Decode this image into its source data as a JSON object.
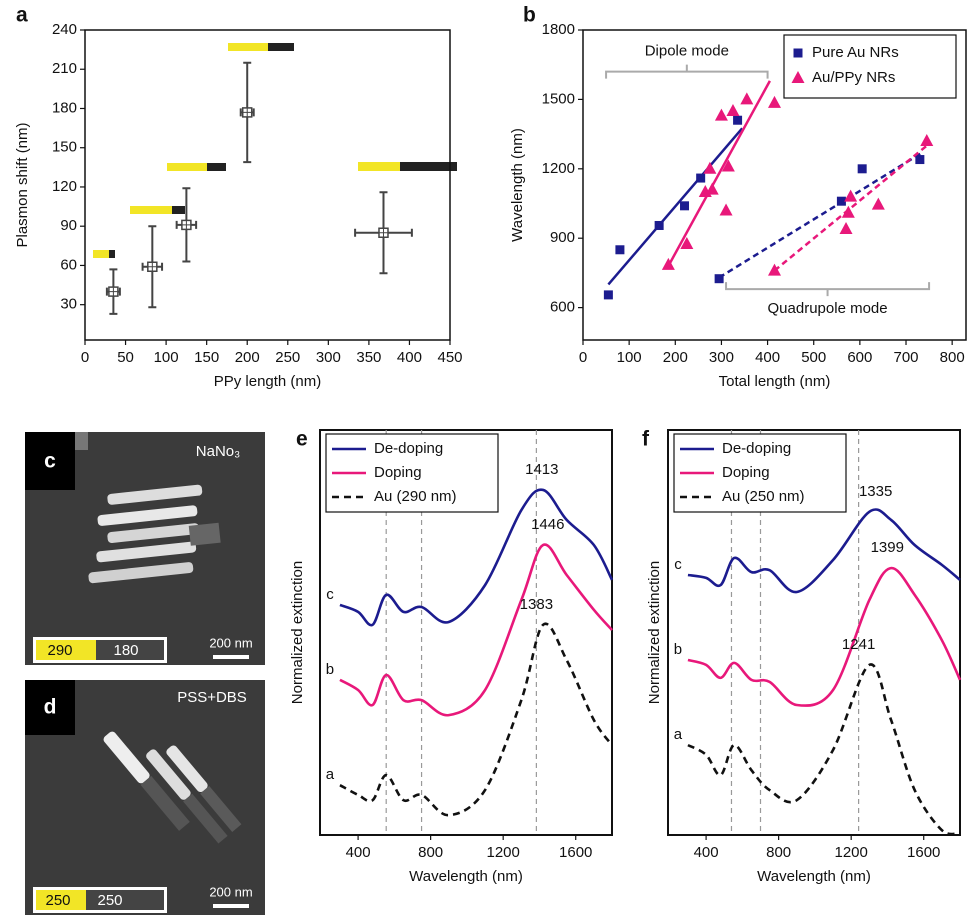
{
  "chart_data": [
    {
      "type": "errorbar",
      "panel": "a",
      "xlabel": "PPy length (nm)",
      "ylabel": "Plasmon shift (nm)",
      "xlim": [
        0,
        450
      ],
      "xticks": [
        0,
        50,
        100,
        150,
        200,
        250,
        300,
        350,
        400,
        450
      ],
      "ylim": [
        3,
        240
      ],
      "yticks": [
        30,
        60,
        90,
        120,
        150,
        180,
        210,
        240
      ],
      "color": "#444444",
      "x": [
        35,
        83,
        125,
        200,
        368
      ],
      "values": [
        40,
        59,
        91,
        177,
        85
      ],
      "xerr": [
        8,
        12,
        12,
        8,
        35
      ],
      "yerr": [
        17,
        31,
        28,
        38,
        31
      ]
    },
    {
      "type": "scatter",
      "panel": "b",
      "xlabel": "Total length (nm)",
      "ylabel": "Wavelength (nm)",
      "xlim": [
        0,
        830
      ],
      "xticks": [
        0,
        100,
        200,
        300,
        400,
        500,
        600,
        700,
        800
      ],
      "ylim": [
        460,
        1800
      ],
      "yticks": [
        600,
        900,
        1200,
        1500,
        1800
      ],
      "legend": "upper right",
      "series": [
        {
          "name": "Pure Au NRs",
          "color": "#1c1c8f",
          "marker": "square",
          "x": [
            55,
            80,
            165,
            220,
            255,
            335,
            295,
            560,
            605,
            730
          ],
          "values": [
            655,
            850,
            955,
            1040,
            1160,
            1410,
            725,
            1060,
            1200,
            1240
          ],
          "fits": [
            {
              "x": [
                55,
                345
              ],
              "y": [
                700,
                1375
              ],
              "dashed": false
            },
            {
              "x": [
                295,
                735
              ],
              "y": [
                730,
                1270
              ],
              "dashed": true
            }
          ]
        },
        {
          "name": "Au/PPy NRs",
          "color": "#e8187a",
          "marker": "triangle",
          "x": [
            185,
            225,
            265,
            275,
            280,
            300,
            310,
            315,
            325,
            355,
            415,
            415,
            570,
            575,
            580,
            640,
            745
          ],
          "values": [
            785,
            875,
            1100,
            1200,
            1110,
            1430,
            1020,
            1210,
            1450,
            1500,
            1485,
            760,
            940,
            1010,
            1080,
            1045,
            1320
          ],
          "fits": [
            {
              "x": [
                185,
                405
              ],
              "y": [
                780,
                1580
              ],
              "dashed": false
            },
            {
              "x": [
                415,
                745
              ],
              "y": [
                760,
                1300
              ],
              "dashed": true
            }
          ]
        }
      ],
      "annotations": [
        {
          "text": "Dipole mode",
          "x": [
            50,
            400
          ],
          "y": 1620,
          "side": "above"
        },
        {
          "text": "Quadrupole mode",
          "x": [
            310,
            750
          ],
          "y": 680,
          "side": "below"
        }
      ]
    },
    {
      "type": "line",
      "panel": "e",
      "xlabel": "Wavelength (nm)",
      "ylabel": "Normalized extinction",
      "xlim": [
        190,
        1800
      ],
      "xticks": [
        400,
        800,
        1200,
        1600
      ],
      "ylim": [
        0,
        100
      ],
      "vlines": [
        555,
        750,
        1383
      ],
      "x": [
        300,
        400,
        480,
        555,
        650,
        750,
        900,
        1100,
        1300,
        1420,
        1550,
        1700,
        1800
      ],
      "series": [
        {
          "name": "De-doping",
          "color": "#1c1c8f",
          "dashed": false,
          "tag": "c",
          "peak": 1413,
          "values": [
            56.8,
            55.1,
            51.9,
            59.3,
            55.1,
            56.3,
            52.6,
            61.7,
            80.2,
            85.2,
            77.8,
            71.6,
            63.0
          ]
        },
        {
          "name": "Doping",
          "color": "#e8187a",
          "dashed": false,
          "tag": "b",
          "peak": 1446,
          "values": [
            38.3,
            35.8,
            32.1,
            39.5,
            33.3,
            33.3,
            29.6,
            35.8,
            58.0,
            71.6,
            64.2,
            55.6,
            50.6
          ]
        },
        {
          "name": "Au (290 nm)",
          "color": "#111111",
          "dashed": true,
          "tag": "a",
          "peak": 1383,
          "values": [
            12.3,
            9.9,
            8.6,
            14.8,
            8.6,
            9.9,
            4.9,
            11.1,
            33.3,
            51.9,
            43.2,
            28.4,
            22.2
          ]
        }
      ]
    },
    {
      "type": "line",
      "panel": "f",
      "xlabel": "Wavelength (nm)",
      "ylabel": "Normalized extinction",
      "xlim": [
        190,
        1800
      ],
      "xticks": [
        400,
        800,
        1200,
        1600
      ],
      "ylim": [
        0,
        100
      ],
      "vlines": [
        540,
        700,
        1241
      ],
      "x": [
        300,
        400,
        480,
        555,
        650,
        750,
        900,
        1100,
        1300,
        1420,
        1550,
        1700,
        1800
      ],
      "series": [
        {
          "name": "De-doping",
          "color": "#1c1c8f",
          "dashed": false,
          "tag": "c",
          "peak": 1335,
          "values": [
            64.2,
            63.5,
            61.7,
            68.4,
            64.9,
            65.4,
            60.0,
            67.9,
            79.8,
            77.8,
            71.6,
            66.7,
            63.0
          ]
        },
        {
          "name": "Doping",
          "color": "#e8187a",
          "dashed": false,
          "tag": "b",
          "peak": 1399,
          "values": [
            43.2,
            42.0,
            38.8,
            42.5,
            38.3,
            37.8,
            32.1,
            35.8,
            58.0,
            65.9,
            59.3,
            48.1,
            38.3
          ]
        },
        {
          "name": "Au (250 nm)",
          "color": "#111111",
          "dashed": true,
          "tag": "a",
          "peak": 1241,
          "values": [
            22.2,
            19.8,
            14.8,
            22.2,
            16.0,
            11.1,
            8.6,
            21.0,
            42.0,
            28.4,
            11.1,
            1.2,
            0.5
          ]
        }
      ]
    }
  ],
  "images": [
    {
      "panel": "c",
      "caption": "NaNo₃",
      "segments": [
        290,
        180
      ],
      "scale": "200 nm"
    },
    {
      "panel": "d",
      "caption": "PSS+DBS",
      "segments": [
        250,
        250
      ],
      "scale": "200 nm"
    }
  ]
}
